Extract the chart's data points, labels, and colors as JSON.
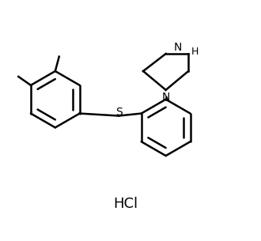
{
  "line_color": "#000000",
  "background_color": "#ffffff",
  "line_width": 1.8,
  "figsize": [
    3.3,
    3.05
  ],
  "dpi": 100,
  "hcl_text": "HCl",
  "s_label": "S",
  "n_label": "N",
  "nh_label": "H",
  "xlim": [
    0.0,
    5.5
  ],
  "ylim": [
    0.0,
    4.2
  ]
}
